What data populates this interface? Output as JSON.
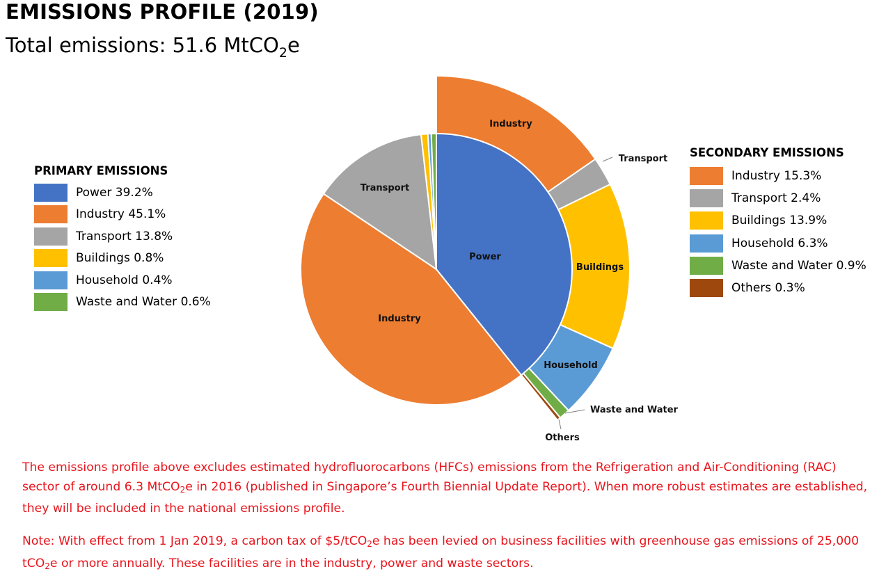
{
  "header": {
    "title": "EMISSIONS PROFILE (2019)",
    "subtitle_prefix": "Total emissions: 51.6 MtCO",
    "subtitle_sub": "2",
    "subtitle_suffix": "e"
  },
  "chart_data": {
    "type": "pie",
    "title": "EMISSIONS PROFILE (2019)",
    "subtitle": "Total emissions: 51.6 MtCO2e",
    "total_value": 51.6,
    "total_unit": "MtCO2e",
    "primary": {
      "legend_title": "PRIMARY EMISSIONS",
      "slices": [
        {
          "name": "Power",
          "value": 39.2,
          "label": "Power 39.2%",
          "color": "#4472c4",
          "pie_label": "Power"
        },
        {
          "name": "Industry",
          "value": 45.1,
          "label": "Industry 45.1%",
          "color": "#ed7d31",
          "pie_label": "Industry"
        },
        {
          "name": "Transport",
          "value": 13.8,
          "label": "Transport 13.8%",
          "color": "#a5a5a5",
          "pie_label": "Transport"
        },
        {
          "name": "Buildings",
          "value": 0.8,
          "label": "Buildings 0.8%",
          "color": "#ffc000",
          "pie_label": ""
        },
        {
          "name": "Household",
          "value": 0.4,
          "label": "Household 0.4%",
          "color": "#5b9bd5",
          "pie_label": ""
        },
        {
          "name": "Waste and Water",
          "value": 0.6,
          "label": "Waste and Water 0.6%",
          "color": "#70ad47",
          "pie_label": ""
        }
      ]
    },
    "secondary": {
      "legend_title": "SECONDARY EMISSIONS",
      "slices": [
        {
          "name": "Industry",
          "value": 15.3,
          "label": "Industry 15.3%",
          "color": "#ed7d31",
          "pie_label": "Industry"
        },
        {
          "name": "Transport",
          "value": 2.4,
          "label": "Transport 2.4%",
          "color": "#a5a5a5",
          "pie_label": "Transport"
        },
        {
          "name": "Buildings",
          "value": 13.9,
          "label": "Buildings 13.9%",
          "color": "#ffc000",
          "pie_label": "Buildings"
        },
        {
          "name": "Household",
          "value": 6.3,
          "label": "Household 6.3%",
          "color": "#5b9bd5",
          "pie_label": "Household"
        },
        {
          "name": "Waste and Water",
          "value": 0.9,
          "label": "Waste and Water 0.9%",
          "color": "#70ad47",
          "pie_label": "Waste and Water"
        },
        {
          "name": "Others",
          "value": 0.3,
          "label": "Others 0.3%",
          "color": "#9e480e",
          "pie_label": "Others"
        }
      ]
    }
  },
  "notes": {
    "note1_a": "The emissions profile above excludes estimated hydrofluorocarbons (HFCs) emissions from the Refrigeration and Air-Conditioning (RAC) sector of around 6.3 MtCO",
    "note1_sub": "2",
    "note1_b": "e in 2016 (published in Singapore’s Fourth Biennial Update Report). When more robust estimates are established, they will be included in the national emissions profile.",
    "note2_a": "Note: With effect from 1 Jan 2019, a carbon tax of $5/tCO",
    "note2_sub1": "2",
    "note2_b": "e has been levied on business facilities with greenhouse gas emissions of 25,000 tCO",
    "note2_sub2": "2",
    "note2_c": "e or more annually. These facilities are in the industry, power and waste sectors."
  }
}
